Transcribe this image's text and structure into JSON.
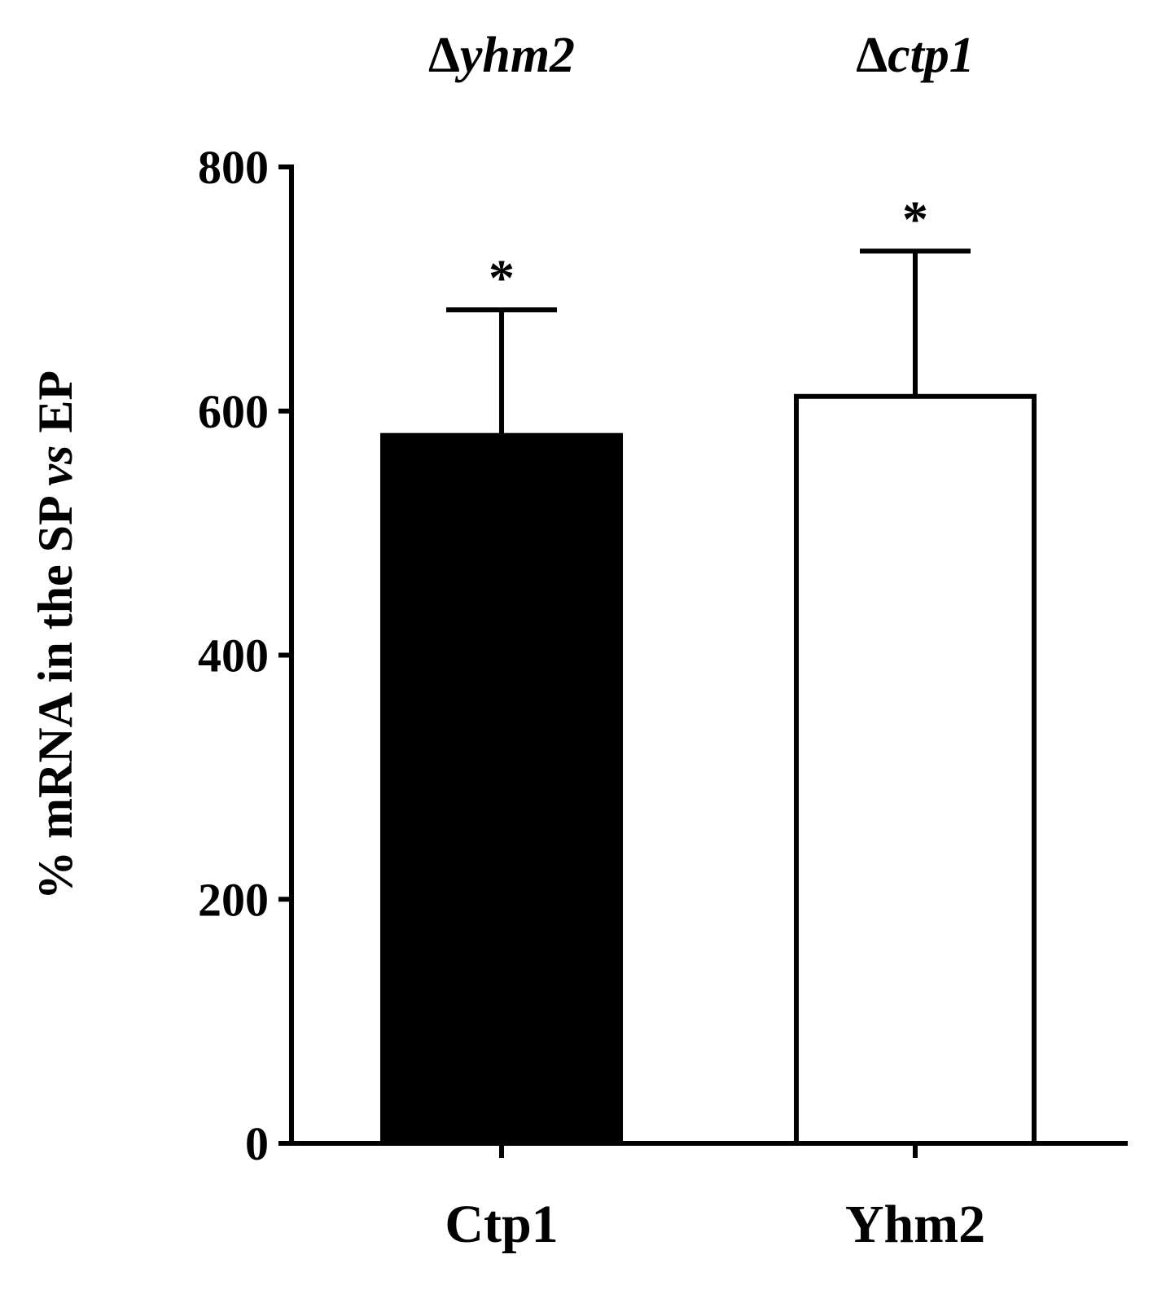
{
  "chart_data": {
    "type": "bar",
    "categories": [
      "Ctp1",
      "Yhm2"
    ],
    "group_labels": [
      {
        "prefix": "Δ",
        "name": "yhm2"
      },
      {
        "prefix": "Δ",
        "name": "ctp1"
      }
    ],
    "values": [
      580,
      612
    ],
    "error_upper": [
      683,
      731
    ],
    "bar_fills": [
      "#000000",
      "#ffffff"
    ],
    "bar_stroke": "#000000",
    "significance": [
      "*",
      "*"
    ],
    "ylabel": {
      "prefix": "% mRNA in the SP ",
      "italic": "vs",
      "suffix": " EP"
    },
    "ylim": [
      0,
      800
    ],
    "yticks": [
      0,
      200,
      400,
      600,
      800
    ],
    "grid": false,
    "legend": "none"
  }
}
